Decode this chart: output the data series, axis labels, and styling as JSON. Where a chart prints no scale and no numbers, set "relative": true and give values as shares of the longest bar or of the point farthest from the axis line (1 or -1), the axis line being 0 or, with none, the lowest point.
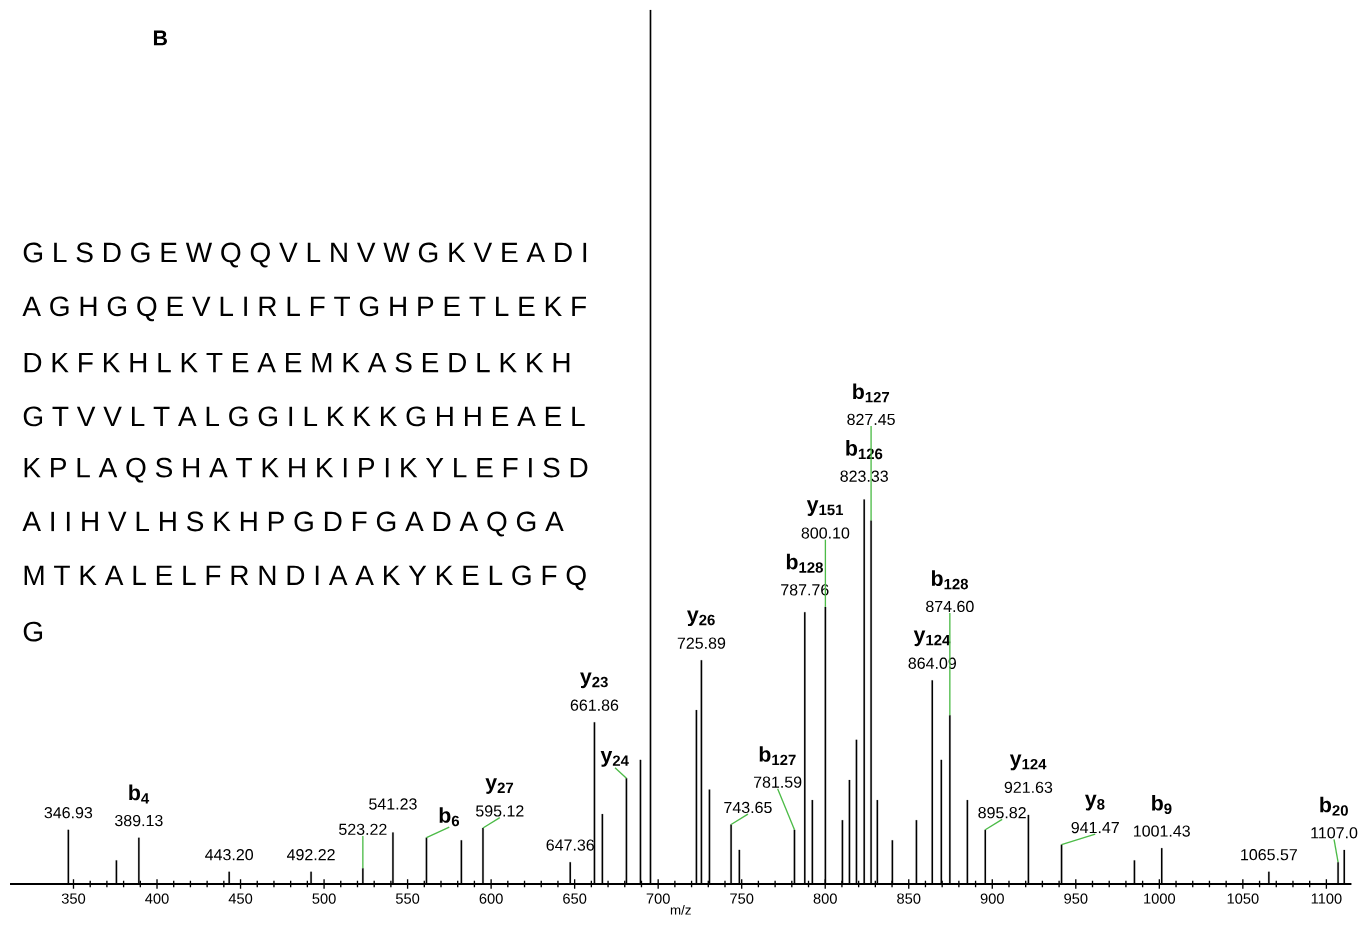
{
  "chart_data": {
    "type": "bar",
    "relative": true,
    "xlabel": "m/z",
    "color": "#000000",
    "xlim": [
      312,
      1115
    ],
    "xticks": [
      350,
      400,
      450,
      500,
      550,
      600,
      650,
      700,
      750,
      800,
      850,
      900,
      950,
      1000,
      1050,
      1100
    ],
    "x": [
      346.93,
      375.7,
      389.13,
      443.2,
      492.22,
      523.22,
      541.23,
      561.3,
      582.2,
      595.12,
      647.36,
      661.86,
      666.6,
      681.0,
      689.4,
      695.4,
      722.9,
      725.89,
      730.7,
      743.65,
      748.6,
      781.59,
      787.76,
      792.3,
      800.1,
      810.3,
      814.5,
      818.7,
      823.33,
      827.45,
      831.2,
      840.2,
      854.6,
      864.09,
      869.5,
      874.6,
      885.1,
      895.82,
      921.63,
      941.47,
      985.1,
      1001.43,
      1065.57,
      1107.0,
      1110.7
    ],
    "values": [
      0.062,
      0.027,
      0.053,
      0.014,
      0.014,
      0.018,
      0.059,
      0.053,
      0.05,
      0.064,
      0.025,
      0.185,
      0.08,
      0.121,
      0.142,
      1,
      0.199,
      0.256,
      0.108,
      0.068,
      0.039,
      0.062,
      0.311,
      0.096,
      0.317,
      0.073,
      0.119,
      0.165,
      0.44,
      0.416,
      0.096,
      0.05,
      0.073,
      0.233,
      0.142,
      0.193,
      0.096,
      0.062,
      0.079,
      0.045,
      0.027,
      0.041,
      0.014,
      0.025,
      0.039
    ],
    "annotations": [
      "B",
      "G L S D G E W Q Q V L N V W G K V E A D I",
      "A G H G Q E V L I R L F T G H P E T L E K F",
      "D K F K H L K T E A E M K A S E D L K K H",
      "G T V V L T A L G G I L K K K G H H E A E L",
      "K P L A Q S H A T K H K I P I K Y L E F I S D",
      "A I I H V L H S K  H P G D F G A D A Q G A",
      "M T K A L E L F R N D I A A K Y K E L G F Q",
      "G",
      {
        "text": "346.93",
        "x": 346.93,
        "y": 0.062
      },
      {
        "text": "389.13",
        "x": 389.13,
        "y": 0.053
      },
      {
        "text": "443.20",
        "x": 443.2,
        "y": 0.014
      },
      {
        "text": "492.22",
        "x": 492.22,
        "y": 0.014
      },
      {
        "text": "523.22",
        "x": 523.22,
        "y": 0.018
      },
      {
        "text": "541.23",
        "x": 541.23,
        "y": 0.059
      },
      {
        "text": "595.12",
        "x": 595.12,
        "y": 0.064
      },
      {
        "text": "647.36",
        "x": 647.36,
        "y": 0.025
      },
      {
        "text": "661.86",
        "x": 661.86,
        "y": 0.185
      },
      {
        "text": "725.89",
        "x": 725.89,
        "y": 0.256
      },
      {
        "text": "743.65",
        "x": 743.65,
        "y": 0.068
      },
      {
        "text": "781.59",
        "x": 781.59,
        "y": 0.062
      },
      {
        "text": "787.76",
        "x": 787.76,
        "y": 0.311
      },
      {
        "text": "800.10",
        "x": 800.1,
        "y": 0.317
      },
      {
        "text": "823.33",
        "x": 823.33,
        "y": 0.44
      },
      {
        "text": "827.45",
        "x": 827.45,
        "y": 0.416
      },
      {
        "text": "864.09",
        "x": 864.09,
        "y": 0.233
      },
      {
        "text": "874.60",
        "x": 874.6,
        "y": 0.193
      },
      {
        "text": "895.82",
        "x": 895.82,
        "y": 0.062
      },
      {
        "text": "921.63",
        "x": 921.63,
        "y": 0.079
      },
      {
        "text": "941.47",
        "x": 941.47,
        "y": 0.045
      },
      {
        "text": "1001.43",
        "x": 1001.43,
        "y": 0.041
      },
      {
        "text": "1065.57",
        "x": 1065.57,
        "y": 0.014
      },
      {
        "text": "1107.0",
        "x": 1107.0,
        "y": 0.025
      },
      {
        "text": "b$_{4}$",
        "x": 389.13,
        "y": 0.053
      },
      {
        "text": "b$_{6}$",
        "x": 561.3,
        "y": 0.053
      },
      {
        "text": "y$_{27}$",
        "x": 595.12,
        "y": 0.064
      },
      {
        "text": "y$_{23}$",
        "x": 661.86,
        "y": 0.185
      },
      {
        "text": "y$_{24}$",
        "x": 681.0,
        "y": 0.121
      },
      {
        "text": "y$_{26}$",
        "x": 725.89,
        "y": 0.256
      },
      {
        "text": "b$_{127}$",
        "x": 781.59,
        "y": 0.062
      },
      {
        "text": "b$_{128}$",
        "x": 787.76,
        "y": 0.311
      },
      {
        "text": "y$_{151}$",
        "x": 800.1,
        "y": 0.317
      },
      {
        "text": "b$_{126}$",
        "x": 823.33,
        "y": 0.44
      },
      {
        "text": "b$_{127}$",
        "x": 827.45,
        "y": 0.416
      },
      {
        "text": "y$_{124}$",
        "x": 864.09,
        "y": 0.233
      },
      {
        "text": "b$_{128}$",
        "x": 874.6,
        "y": 0.193
      },
      {
        "text": "y$_{124}$",
        "x": 921.63,
        "y": 0.079
      },
      {
        "text": "y$_{8}$",
        "x": 941.47,
        "y": 0.045
      },
      {
        "text": "b$_{9}$",
        "x": 1001.43,
        "y": 0.041
      },
      {
        "text": "b$_{20}$",
        "x": 1107.0,
        "y": 0.025
      }
    ]
  }
}
